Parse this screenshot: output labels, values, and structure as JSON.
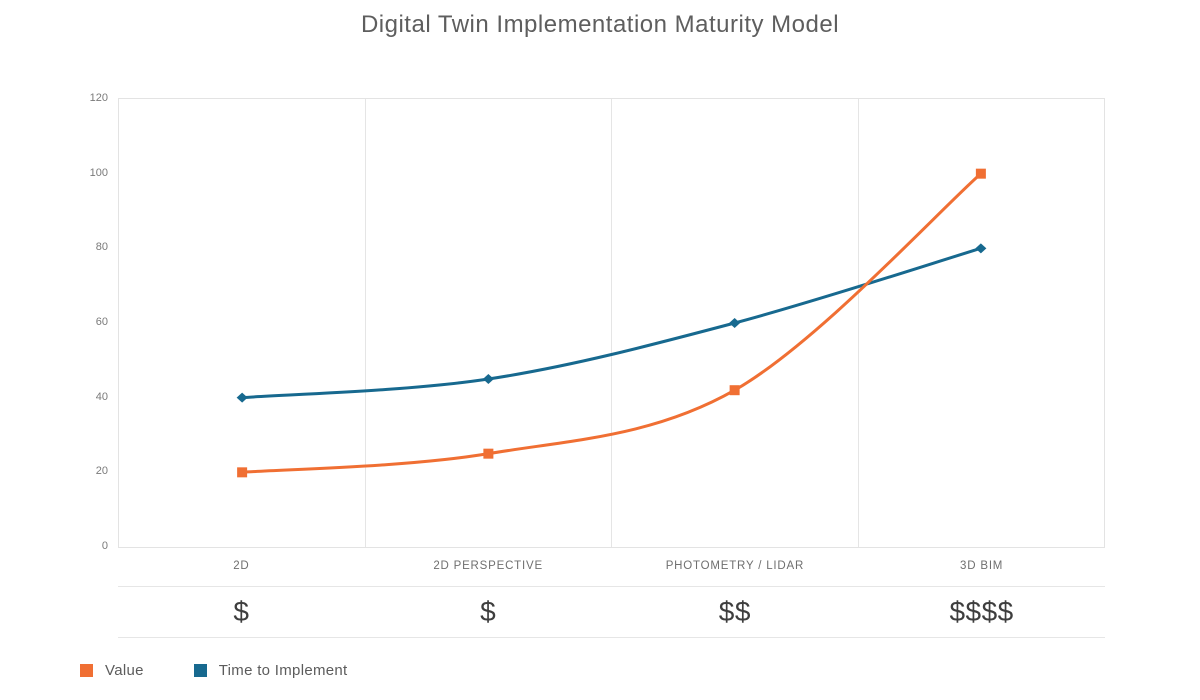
{
  "title": "Digital Twin Implementation Maturity Model",
  "chart_data": {
    "type": "line",
    "title": "Digital Twin Implementation Maturity Model",
    "categories": [
      "2D",
      "2D PERSPECTIVE",
      "PHOTOMETRY / LIDAR",
      "3D BIM"
    ],
    "cost_labels": [
      "$",
      "$",
      "$$",
      "$$$$"
    ],
    "series": [
      {
        "name": "Value",
        "color": "#F06F33",
        "marker": "square",
        "values": [
          20,
          25,
          42,
          100
        ]
      },
      {
        "name": "Time to Implement",
        "color": "#17698F",
        "marker": "diamond",
        "values": [
          40,
          45,
          60,
          80
        ]
      }
    ],
    "ylim": [
      0,
      120
    ],
    "yticks": [
      120,
      100,
      80,
      60,
      40,
      20,
      0
    ],
    "xlabel": "",
    "ylabel": "",
    "smooth": true,
    "grid": "vertical-only",
    "legend_position": "bottom-left"
  }
}
